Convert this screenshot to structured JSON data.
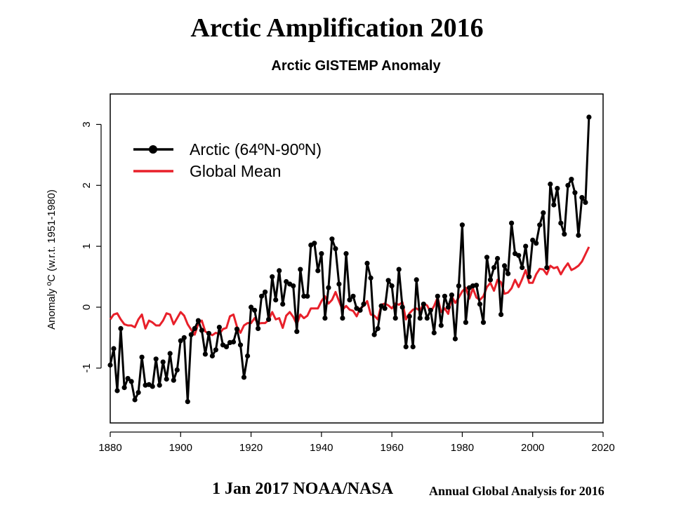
{
  "slide": {
    "title": "Arctic Amplification 2016",
    "footer_left": "1 Jan 2017 NOAA/NASA",
    "footer_right": "Annual Global Analysis for 2016"
  },
  "chart_data": {
    "type": "line",
    "title": "Arctic GISTEMP Anomaly",
    "xlabel": "",
    "ylabel": "Anomaly ºC (w.r.t. 1951-1980)",
    "xlim": [
      1880,
      2020
    ],
    "ylim": [
      -1.9,
      3.5
    ],
    "xticks": [
      1880,
      1900,
      1920,
      1940,
      1960,
      1980,
      2000,
      2020
    ],
    "yticks": [
      -1,
      0,
      1,
      2,
      3
    ],
    "grid": false,
    "legend": "top-left",
    "series": [
      {
        "name": "Arctic (64ºN-90ºN)",
        "color": "#000000",
        "marker": "circle",
        "x": [
          1880,
          1881,
          1882,
          1883,
          1884,
          1885,
          1886,
          1887,
          1888,
          1889,
          1890,
          1891,
          1892,
          1893,
          1894,
          1895,
          1896,
          1897,
          1898,
          1899,
          1900,
          1901,
          1902,
          1903,
          1904,
          1905,
          1906,
          1907,
          1908,
          1909,
          1910,
          1911,
          1912,
          1913,
          1914,
          1915,
          1916,
          1917,
          1918,
          1919,
          1920,
          1921,
          1922,
          1923,
          1924,
          1925,
          1926,
          1927,
          1928,
          1929,
          1930,
          1931,
          1932,
          1933,
          1934,
          1935,
          1936,
          1937,
          1938,
          1939,
          1940,
          1941,
          1942,
          1943,
          1944,
          1945,
          1946,
          1947,
          1948,
          1949,
          1950,
          1951,
          1952,
          1953,
          1954,
          1955,
          1956,
          1957,
          1958,
          1959,
          1960,
          1961,
          1962,
          1963,
          1964,
          1965,
          1966,
          1967,
          1968,
          1969,
          1970,
          1971,
          1972,
          1973,
          1974,
          1975,
          1976,
          1977,
          1978,
          1979,
          1980,
          1981,
          1982,
          1983,
          1984,
          1985,
          1986,
          1987,
          1988,
          1989,
          1990,
          1991,
          1992,
          1993,
          1994,
          1995,
          1996,
          1997,
          1998,
          1999,
          2000,
          2001,
          2002,
          2003,
          2004,
          2005,
          2006,
          2007,
          2008,
          2009,
          2010,
          2011,
          2012,
          2013,
          2014,
          2015,
          2016
        ],
        "y": [
          -0.95,
          -0.68,
          -1.37,
          -0.35,
          -1.32,
          -1.17,
          -1.22,
          -1.52,
          -1.4,
          -0.82,
          -1.28,
          -1.27,
          -1.3,
          -0.85,
          -1.28,
          -0.9,
          -1.18,
          -0.76,
          -1.2,
          -1.03,
          -0.55,
          -0.5,
          -1.55,
          -0.45,
          -0.35,
          -0.22,
          -0.38,
          -0.77,
          -0.43,
          -0.8,
          -0.7,
          -0.33,
          -0.62,
          -0.65,
          -0.58,
          -0.57,
          -0.36,
          -0.62,
          -1.15,
          -0.8,
          0.0,
          -0.05,
          -0.35,
          0.18,
          0.25,
          -0.2,
          0.5,
          0.12,
          0.6,
          0.05,
          0.42,
          0.38,
          0.35,
          -0.4,
          0.62,
          0.18,
          0.18,
          1.02,
          1.05,
          0.6,
          0.88,
          -0.18,
          0.32,
          1.12,
          0.96,
          0.38,
          -0.18,
          0.88,
          0.12,
          0.18,
          -0.02,
          -0.05,
          0.05,
          0.72,
          0.48,
          -0.45,
          -0.35,
          0.02,
          -0.02,
          0.44,
          0.35,
          -0.18,
          0.62,
          0.0,
          -0.65,
          -0.15,
          -0.65,
          0.45,
          -0.18,
          0.05,
          -0.18,
          -0.05,
          -0.42,
          0.18,
          -0.3,
          0.18,
          0.0,
          0.2,
          -0.52,
          0.35,
          1.35,
          -0.25,
          0.32,
          0.35,
          0.36,
          0.05,
          -0.25,
          0.82,
          0.45,
          0.65,
          0.8,
          -0.12,
          0.68,
          0.55,
          1.38,
          0.88,
          0.85,
          0.65,
          1.0,
          0.5,
          1.1,
          1.05,
          1.35,
          1.55,
          0.65,
          2.02,
          1.68,
          1.95,
          1.38,
          1.2,
          2.0,
          2.1,
          1.88,
          1.18,
          1.8,
          1.72,
          3.12
        ]
      },
      {
        "name": "Global Mean",
        "color": "#e8202a",
        "marker": "none",
        "x": [
          1880,
          1881,
          1882,
          1883,
          1884,
          1885,
          1886,
          1887,
          1888,
          1889,
          1890,
          1891,
          1892,
          1893,
          1894,
          1895,
          1896,
          1897,
          1898,
          1899,
          1900,
          1901,
          1902,
          1903,
          1904,
          1905,
          1906,
          1907,
          1908,
          1909,
          1910,
          1911,
          1912,
          1913,
          1914,
          1915,
          1916,
          1917,
          1918,
          1919,
          1920,
          1921,
          1922,
          1923,
          1924,
          1925,
          1926,
          1927,
          1928,
          1929,
          1930,
          1931,
          1932,
          1933,
          1934,
          1935,
          1936,
          1937,
          1938,
          1939,
          1940,
          1941,
          1942,
          1943,
          1944,
          1945,
          1946,
          1947,
          1948,
          1949,
          1950,
          1951,
          1952,
          1953,
          1954,
          1955,
          1956,
          1957,
          1958,
          1959,
          1960,
          1961,
          1962,
          1963,
          1964,
          1965,
          1966,
          1967,
          1968,
          1969,
          1970,
          1971,
          1972,
          1973,
          1974,
          1975,
          1976,
          1977,
          1978,
          1979,
          1980,
          1981,
          1982,
          1983,
          1984,
          1985,
          1986,
          1987,
          1988,
          1989,
          1990,
          1991,
          1992,
          1993,
          1994,
          1995,
          1996,
          1997,
          1998,
          1999,
          2000,
          2001,
          2002,
          2003,
          2004,
          2005,
          2006,
          2007,
          2008,
          2009,
          2010,
          2011,
          2012,
          2013,
          2014,
          2015,
          2016
        ],
        "y": [
          -0.2,
          -0.12,
          -0.1,
          -0.2,
          -0.28,
          -0.3,
          -0.3,
          -0.33,
          -0.2,
          -0.12,
          -0.35,
          -0.22,
          -0.25,
          -0.3,
          -0.3,
          -0.22,
          -0.1,
          -0.12,
          -0.28,
          -0.18,
          -0.08,
          -0.14,
          -0.28,
          -0.37,
          -0.45,
          -0.27,
          -0.22,
          -0.4,
          -0.43,
          -0.46,
          -0.42,
          -0.44,
          -0.36,
          -0.34,
          -0.15,
          -0.12,
          -0.32,
          -0.42,
          -0.3,
          -0.26,
          -0.26,
          -0.18,
          -0.27,
          -0.26,
          -0.26,
          -0.21,
          -0.08,
          -0.2,
          -0.18,
          -0.34,
          -0.14,
          -0.08,
          -0.16,
          -0.28,
          -0.12,
          -0.18,
          -0.14,
          -0.02,
          -0.02,
          -0.02,
          0.1,
          0.18,
          0.06,
          0.12,
          0.25,
          0.1,
          -0.04,
          0.02,
          -0.04,
          -0.06,
          -0.15,
          -0.02,
          0.02,
          0.1,
          -0.12,
          -0.14,
          -0.2,
          0.04,
          0.06,
          0.03,
          -0.02,
          0.06,
          0.04,
          0.08,
          -0.2,
          -0.1,
          -0.04,
          -0.02,
          -0.06,
          0.06,
          0.03,
          -0.08,
          0.02,
          0.16,
          -0.08,
          -0.02,
          -0.11,
          0.18,
          0.07,
          0.16,
          0.26,
          0.32,
          0.14,
          0.31,
          0.16,
          0.12,
          0.18,
          0.33,
          0.4,
          0.27,
          0.45,
          0.41,
          0.22,
          0.24,
          0.31,
          0.45,
          0.33,
          0.46,
          0.61,
          0.4,
          0.4,
          0.54,
          0.63,
          0.62,
          0.54,
          0.68,
          0.64,
          0.66,
          0.54,
          0.64,
          0.72,
          0.61,
          0.64,
          0.68,
          0.75,
          0.87,
          0.99
        ]
      }
    ]
  }
}
